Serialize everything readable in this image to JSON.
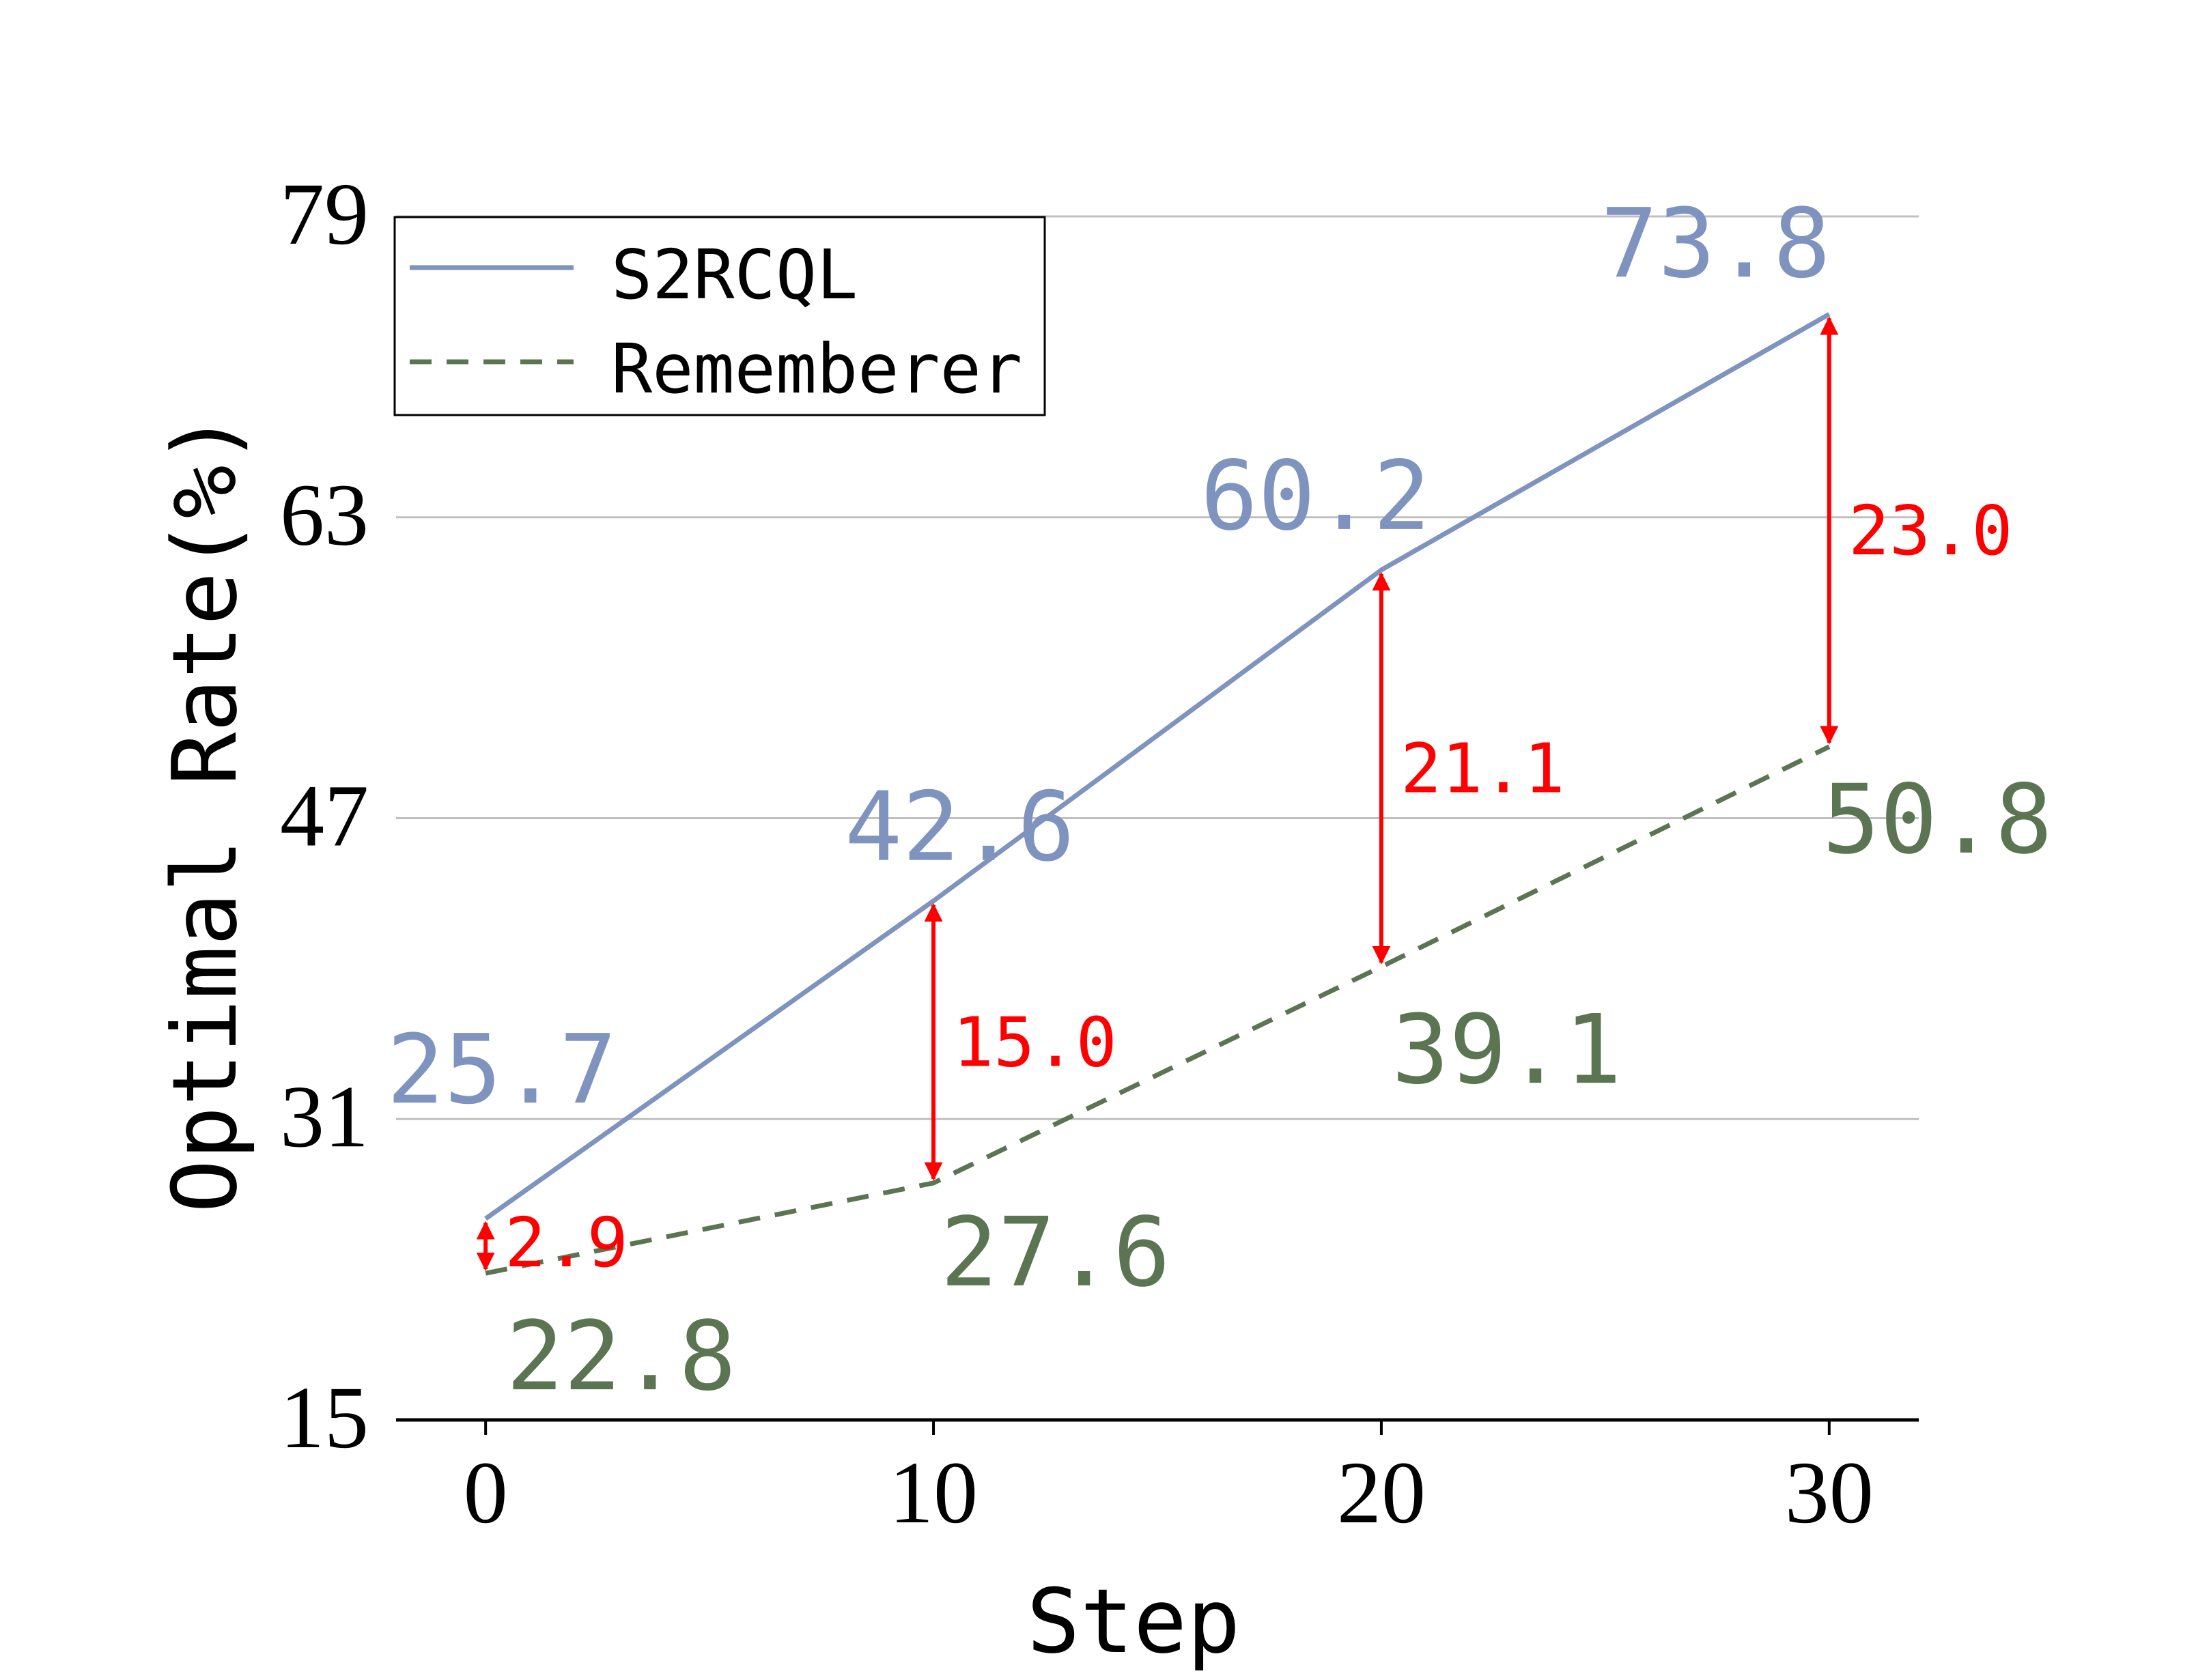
{
  "chart_data": {
    "type": "line",
    "xlabel": "Step",
    "ylabel": "Optimal Rate(%)",
    "x": [
      0,
      10,
      20,
      30
    ],
    "xticks": [
      "0",
      "10",
      "20",
      "30"
    ],
    "yticks": [
      "15",
      "31",
      "47",
      "63",
      "79"
    ],
    "xlim": [
      -2,
      32
    ],
    "ylim": [
      15,
      79
    ],
    "grid": "horizontal",
    "legend_position": "top-left",
    "series": [
      {
        "name": "S2RCQL",
        "values": [
          25.7,
          42.6,
          60.2,
          73.8
        ],
        "labels": [
          "25.7",
          "42.6",
          "60.2",
          "73.8"
        ],
        "color": "#7f93bf",
        "style": "solid"
      },
      {
        "name": "Rememberer",
        "values": [
          22.8,
          27.6,
          39.1,
          50.8
        ],
        "labels": [
          "22.8",
          "27.6",
          "39.1",
          "50.8"
        ],
        "color": "#5b7552",
        "style": "dashed"
      }
    ],
    "annotations": [
      {
        "x": 0,
        "label": "2.9"
      },
      {
        "x": 10,
        "label": "15.0"
      },
      {
        "x": 20,
        "label": "21.1"
      },
      {
        "x": 30,
        "label": "23.0"
      }
    ],
    "annotation_color": "#ff0000"
  }
}
